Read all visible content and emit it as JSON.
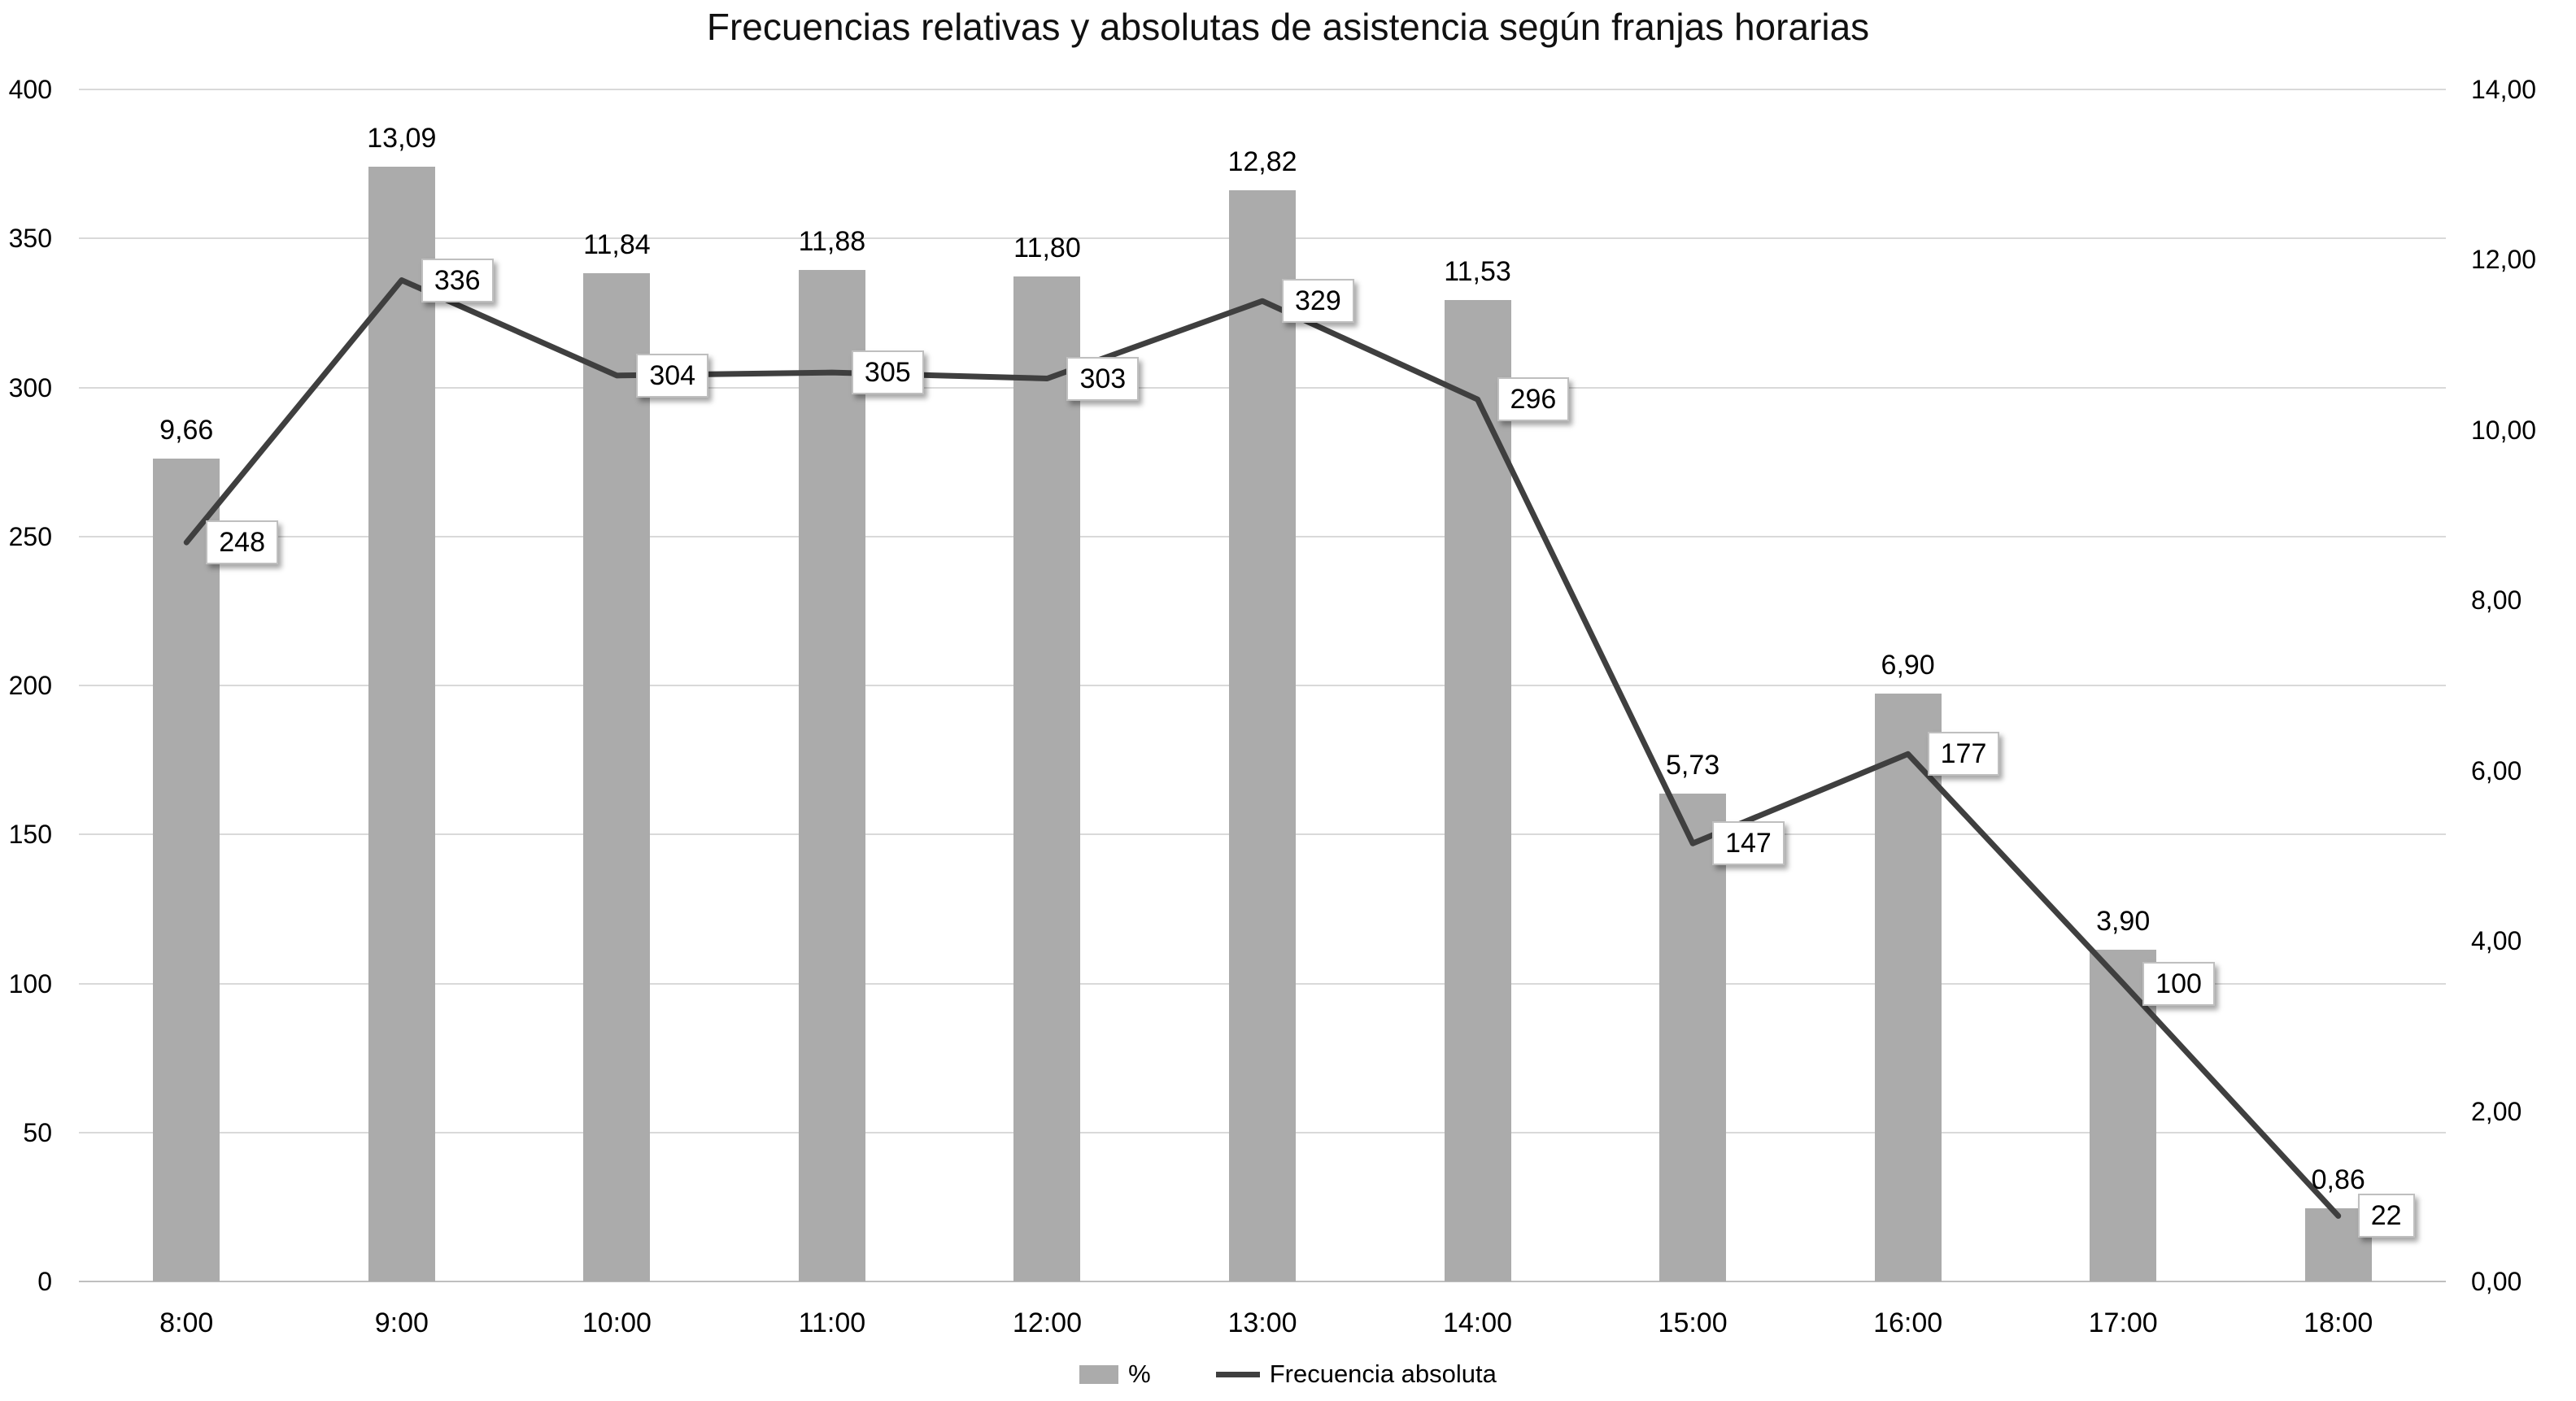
{
  "chart_data": {
    "type": "combo-bar-line",
    "title": "Frecuencias relativas y absolutas de asistencia según franjas horarias",
    "categories": [
      "8:00",
      "9:00",
      "10:00",
      "11:00",
      "12:00",
      "13:00",
      "14:00",
      "15:00",
      "16:00",
      "17:00",
      "18:00"
    ],
    "series": [
      {
        "name": "%",
        "type": "bar",
        "axis": "right",
        "color": "#ababab",
        "values": [
          9.66,
          13.09,
          11.84,
          11.88,
          11.8,
          12.82,
          11.53,
          5.73,
          6.9,
          3.9,
          0.86
        ],
        "labels": [
          "9,66",
          "13,09",
          "11,84",
          "11,88",
          "11,80",
          "12,82",
          "11,53",
          "5,73",
          "6,90",
          "3,90",
          "0,86"
        ]
      },
      {
        "name": "Frecuencia absoluta",
        "type": "line",
        "axis": "left",
        "color": "#3f3f3f",
        "values": [
          248,
          336,
          304,
          305,
          303,
          329,
          296,
          147,
          177,
          100,
          22
        ],
        "labels": [
          "248",
          "336",
          "304",
          "305",
          "303",
          "329",
          "296",
          "147",
          "177",
          "100",
          "22"
        ]
      }
    ],
    "left_axis": {
      "min": 0,
      "max": 400,
      "step": 50,
      "tick_labels": [
        "0",
        "50",
        "100",
        "150",
        "200",
        "250",
        "300",
        "350",
        "400"
      ]
    },
    "right_axis": {
      "min": 0,
      "max": 14,
      "step": 2,
      "tick_labels": [
        "0,00",
        "2,00",
        "4,00",
        "6,00",
        "8,00",
        "10,00",
        "12,00",
        "14,00"
      ]
    },
    "grid": "horizontal",
    "legend_position": "bottom",
    "colors": {
      "bar_fill": "#ababab",
      "line_stroke": "#3f3f3f",
      "gridline": "#d9d9d9",
      "axis_line": "#bfbfbf",
      "label_box_fill": "#ffffff",
      "label_box_border": "#bfbfbf",
      "text": "#000000"
    }
  }
}
